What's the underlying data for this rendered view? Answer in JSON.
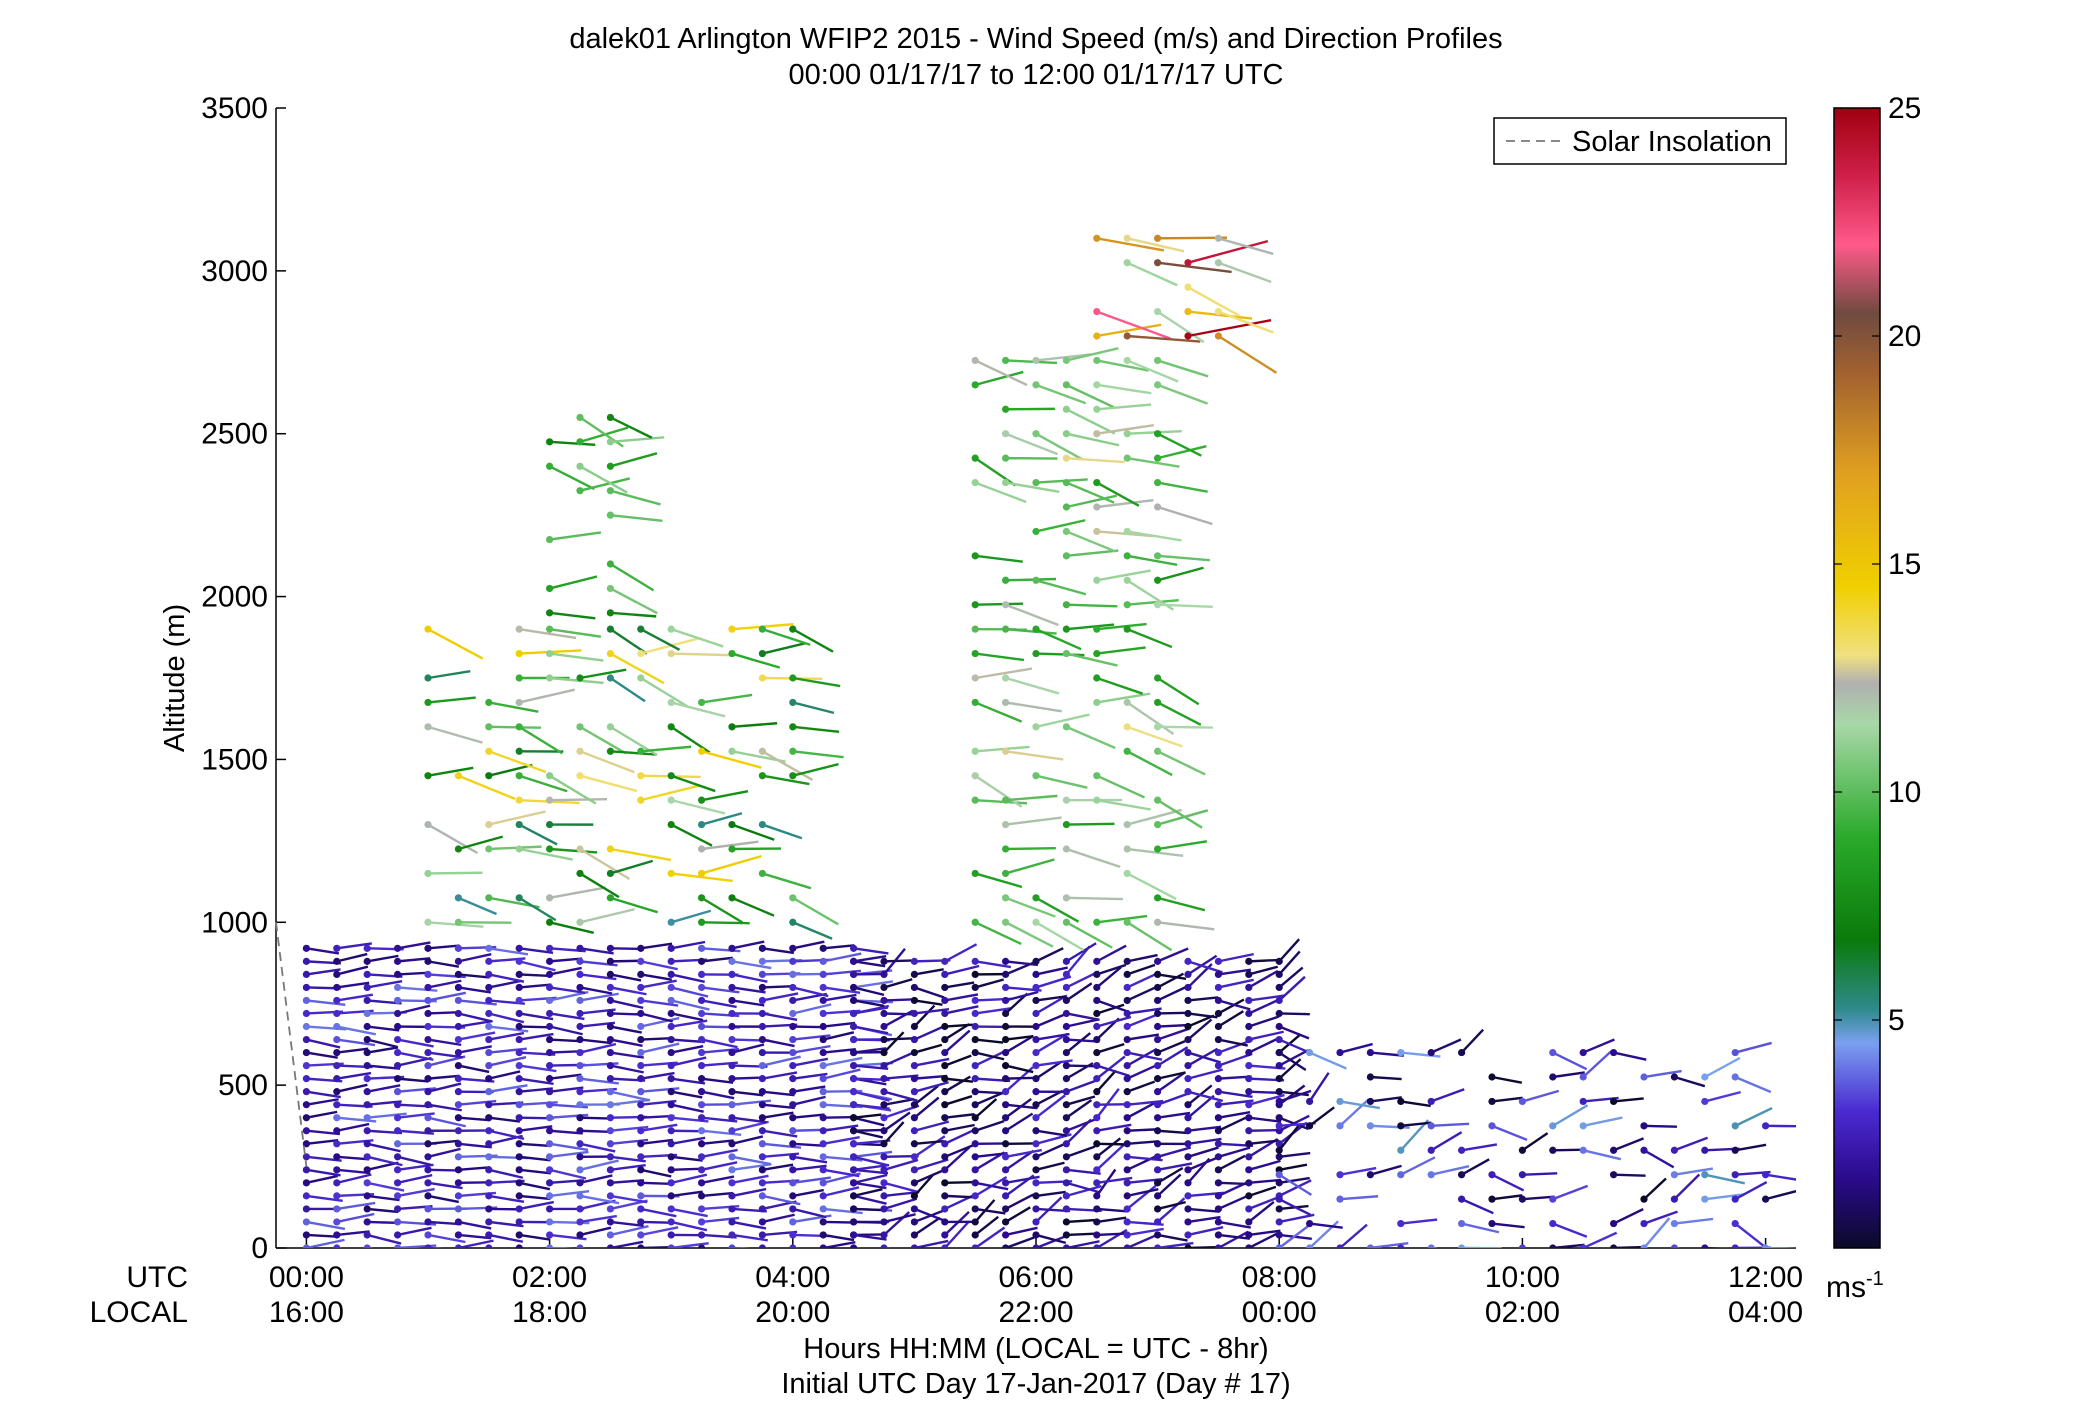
{
  "chart_data": {
    "type": "scatter",
    "title": "dalek01 Arlington WFIP2 2015 - Wind Speed (m/s) and Direction Profiles",
    "subtitle": "00:00 01/17/17 to 12:00 01/17/17  UTC",
    "ylabel": "Altitude (m)",
    "xlabel": "Hours HH:MM  (LOCAL = UTC - 8hr)",
    "xlabel2": "Initial UTC Day 17-Jan-2017 (Day # 17)",
    "xlim_hours_utc": [
      -0.25,
      12.25
    ],
    "ylim": [
      0,
      3500
    ],
    "y_ticks": [
      "0",
      "500",
      "1000",
      "1500",
      "2000",
      "2500",
      "3000",
      "3500"
    ],
    "x_ticks_utc": [
      "00:00",
      "02:00",
      "04:00",
      "06:00",
      "08:00",
      "10:00",
      "12:00"
    ],
    "x_ticks_local": [
      "16:00",
      "18:00",
      "20:00",
      "22:00",
      "00:00",
      "02:00",
      "04:00"
    ],
    "x_row_labels": [
      "UTC",
      "LOCAL"
    ],
    "legend": {
      "entries": [
        "Solar Insolation"
      ],
      "placement": "top-right",
      "style": "dashed gray line"
    },
    "colorbar": {
      "ticks": [
        "5",
        "10",
        "15",
        "20",
        "25"
      ],
      "range": [
        0,
        25
      ],
      "unit_label": "ms",
      "unit_exponent": "-1"
    },
    "solar_insolation_curve": {
      "x_hours": [
        -0.25,
        0.0
      ],
      "y_m": [
        1000,
        250
      ]
    },
    "profile_summary": [
      {
        "time_utc": "00:00-04:30",
        "altitude_m": "0-950",
        "speed_ms": "1-4"
      },
      {
        "time_utc": "01:00-04:00",
        "altitude_m": "1000-1900",
        "speed_ms": "5-15"
      },
      {
        "time_utc": "02:00-02:30",
        "altitude_m": "1950-2550",
        "speed_ms": "7-11"
      },
      {
        "time_utc": "04:30-08:00",
        "altitude_m": "0-900",
        "speed_ms": "0-3"
      },
      {
        "time_utc": "05:30-07:00",
        "altitude_m": "1000-2750",
        "speed_ms": "8-13"
      },
      {
        "time_utc": "06:30-07:30",
        "altitude_m": "2800-3150",
        "speed_ms": "9-25"
      },
      {
        "time_utc": "08:00-12:00",
        "altitude_m": "0-600",
        "speed_ms": "0-5"
      }
    ]
  }
}
